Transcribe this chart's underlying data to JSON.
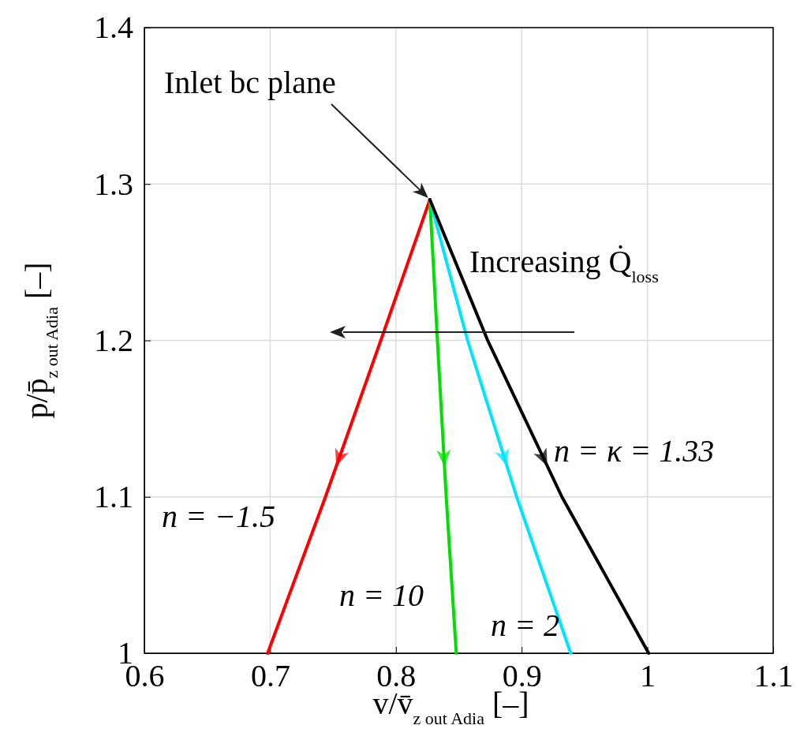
{
  "chart_data": {
    "type": "line",
    "xlabel": "v/v̄$_{z out Adia}$   [–]",
    "ylabel": "p/p̄$_{z out Adia}$   [–]",
    "xlim": [
      0.6,
      1.1
    ],
    "xticks": [
      0.6,
      0.7,
      0.8,
      0.9,
      1,
      1.1
    ],
    "ylim": [
      1,
      1.4
    ],
    "yticks": [
      1,
      1.1,
      1.2,
      1.3,
      1.4
    ],
    "grid": true,
    "line_style": "solid",
    "marker": "none",
    "series": [
      {
        "name": "n = −1.5",
        "color": "#ff0000",
        "x": [
          0.827,
          0.788,
          0.744,
          0.698
        ],
        "values": [
          1.29,
          1.2,
          1.1,
          1.0
        ]
      },
      {
        "name": "n = 10",
        "color": "#00e000",
        "x": [
          0.827,
          0.833,
          0.84,
          0.848
        ],
        "values": [
          1.29,
          1.2,
          1.1,
          1.0
        ]
      },
      {
        "name": "n = 2",
        "color": "#00e5ff",
        "x": [
          0.827,
          0.857,
          0.896,
          0.939
        ],
        "values": [
          1.29,
          1.2,
          1.1,
          1.0
        ]
      },
      {
        "name": "n = κ = 1.33",
        "color": "#000000",
        "x": [
          0.827,
          0.873,
          0.932,
          1.001
        ],
        "values": [
          1.29,
          1.2,
          1.1,
          1.0
        ]
      }
    ],
    "annotations": [
      "Inlet bc plane",
      "Increasing Q̇$_{loss}$"
    ]
  }
}
